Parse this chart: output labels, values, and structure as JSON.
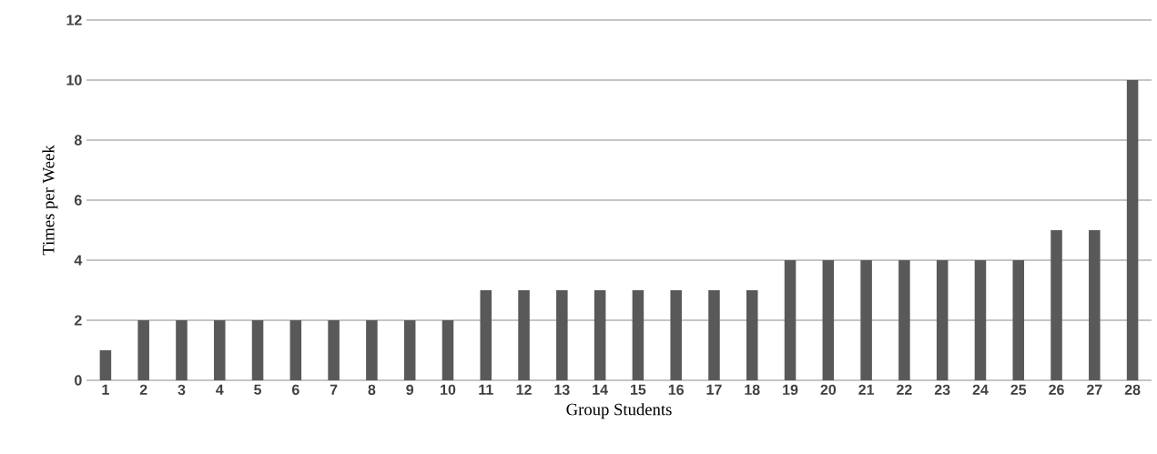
{
  "chart_data": {
    "type": "bar",
    "xlabel": "Group Students",
    "ylabel": "Times per Week",
    "categories": [
      "1",
      "2",
      "3",
      "4",
      "5",
      "6",
      "7",
      "8",
      "9",
      "10",
      "11",
      "12",
      "13",
      "14",
      "15",
      "16",
      "17",
      "18",
      "19",
      "20",
      "21",
      "22",
      "23",
      "24",
      "25",
      "26",
      "27",
      "28"
    ],
    "values": [
      1,
      2,
      2,
      2,
      2,
      2,
      2,
      2,
      2,
      2,
      3,
      3,
      3,
      3,
      3,
      3,
      3,
      3,
      4,
      4,
      4,
      4,
      4,
      4,
      4,
      5,
      5,
      10
    ],
    "color": "#595959",
    "ylim": [
      0,
      12
    ],
    "yticks": [
      0,
      2,
      4,
      6,
      8,
      10,
      12
    ],
    "grid": "y"
  }
}
